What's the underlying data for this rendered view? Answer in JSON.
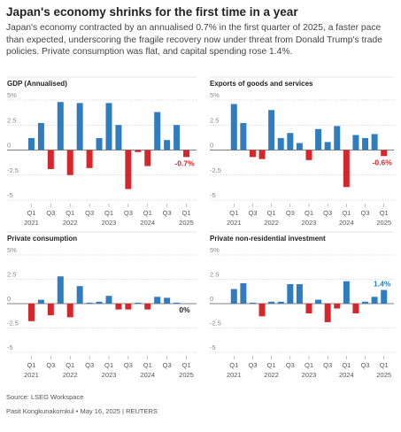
{
  "title": "Japan's economy shrinks for the first time in a year",
  "subtitle": "Japan's economy contracted by an annualised 0.7% in the first quarter of 2025, a faster pace than expected, underscoring the fragile recovery now under threat from Donald Trump's trade policies. Private consumption was flat, and capital spending rose 1.4%.",
  "chart_data": [
    {
      "type": "bar",
      "title": "GDP (Annualised)",
      "categories": [
        "Q1",
        null,
        "Q3",
        null,
        "Q1",
        null,
        "Q3",
        null,
        "Q1",
        null,
        "Q3",
        null,
        "Q1",
        null,
        "Q3",
        null,
        "Q1"
      ],
      "years": [
        "2021",
        null,
        null,
        null,
        "2022",
        null,
        null,
        null,
        "2023",
        null,
        null,
        null,
        "2024",
        null,
        null,
        null,
        "2025"
      ],
      "values": [
        1.2,
        2.7,
        -1.9,
        4.8,
        -2.5,
        4.7,
        -1.8,
        1.2,
        4.7,
        2.5,
        -3.9,
        -0.2,
        -1.6,
        3.8,
        1.0,
        2.5,
        -0.7
      ],
      "value_labels": [
        null,
        null,
        null,
        null,
        null,
        null,
        null,
        null,
        null,
        null,
        null,
        null,
        null,
        null,
        null,
        null,
        "-0.7%"
      ],
      "pos_color": "#2f7cc0",
      "neg_color": "#d7262b",
      "ylim": [
        -5,
        5
      ],
      "yticks": [
        {
          "value": 5,
          "label": "5%"
        },
        2.5,
        0,
        -2.5,
        -5
      ]
    },
    {
      "type": "bar",
      "title": "Exports of goods and services",
      "categories": [
        "Q1",
        null,
        "Q3",
        null,
        "Q1",
        null,
        "Q3",
        null,
        "Q1",
        null,
        "Q3",
        null,
        "Q1",
        null,
        "Q3",
        null,
        "Q1"
      ],
      "years": [
        "2021",
        null,
        null,
        null,
        "2022",
        null,
        null,
        null,
        "2023",
        null,
        null,
        null,
        "2024",
        null,
        null,
        null,
        "2025"
      ],
      "values": [
        4.6,
        2.7,
        -0.7,
        -0.9,
        4.0,
        1.2,
        1.7,
        0.7,
        -1.0,
        2.1,
        0.8,
        2.4,
        -3.7,
        1.5,
        1.2,
        1.6,
        -0.6
      ],
      "value_labels": [
        null,
        null,
        null,
        null,
        null,
        null,
        null,
        null,
        null,
        null,
        null,
        null,
        null,
        null,
        null,
        null,
        "-0.6%"
      ],
      "pos_color": "#2f7cc0",
      "neg_color": "#d7262b",
      "ylim": [
        -5,
        5
      ],
      "yticks": [
        {
          "value": 5,
          "label": "5%"
        },
        2.5,
        0,
        -2.5,
        -5
      ]
    },
    {
      "type": "bar",
      "title": "Private consumption",
      "categories": [
        "Q1",
        null,
        "Q3",
        null,
        "Q1",
        null,
        "Q3",
        null,
        "Q1",
        null,
        "Q3",
        null,
        "Q1",
        null,
        "Q3",
        null,
        "Q1"
      ],
      "years": [
        "2021",
        null,
        null,
        null,
        "2022",
        null,
        null,
        null,
        "2023",
        null,
        null,
        null,
        "2024",
        null,
        null,
        null,
        "2025"
      ],
      "values": [
        -1.8,
        0.4,
        -1.2,
        2.8,
        -1.4,
        1.8,
        0.1,
        0.2,
        0.8,
        -0.6,
        -0.6,
        0.1,
        -0.6,
        0.7,
        0.6,
        0.1,
        0
      ],
      "value_labels": [
        null,
        null,
        null,
        null,
        null,
        null,
        null,
        null,
        null,
        null,
        null,
        null,
        null,
        null,
        null,
        null,
        "0%"
      ],
      "pos_color": "#2f7cc0",
      "neg_color": "#d7262b",
      "ylim": [
        -5,
        5
      ],
      "yticks": [
        {
          "value": 5,
          "label": "5%"
        },
        2.5,
        0,
        -2.5,
        -5
      ]
    },
    {
      "type": "bar",
      "title": "Private non-residential investment",
      "categories": [
        "Q1",
        null,
        "Q3",
        null,
        "Q1",
        null,
        "Q3",
        null,
        "Q1",
        null,
        "Q3",
        null,
        "Q1",
        null,
        "Q3",
        null,
        "Q1"
      ],
      "years": [
        "2021",
        null,
        null,
        null,
        "2022",
        null,
        null,
        null,
        "2023",
        null,
        null,
        null,
        "2024",
        null,
        null,
        null,
        "2025"
      ],
      "values": [
        1.5,
        2.1,
        0.1,
        -1.3,
        0.2,
        0.2,
        2.0,
        2.0,
        -1.0,
        0.4,
        -1.9,
        -0.5,
        2.3,
        -1.0,
        0.2,
        0.7,
        1.4
      ],
      "value_labels": [
        null,
        null,
        null,
        null,
        null,
        null,
        null,
        null,
        null,
        null,
        null,
        null,
        null,
        null,
        null,
        null,
        "1.4%"
      ],
      "pos_color": "#2f7cc0",
      "neg_color": "#d7262b",
      "ylim": [
        -5,
        5
      ],
      "yticks": [
        {
          "value": 5,
          "label": "5%"
        },
        2.5,
        0,
        -2.5,
        -5
      ]
    }
  ],
  "source": "Source: LSEG Workspace",
  "credit": "Pasit Kongkunakornkul • May 16, 2025 | REUTERS"
}
